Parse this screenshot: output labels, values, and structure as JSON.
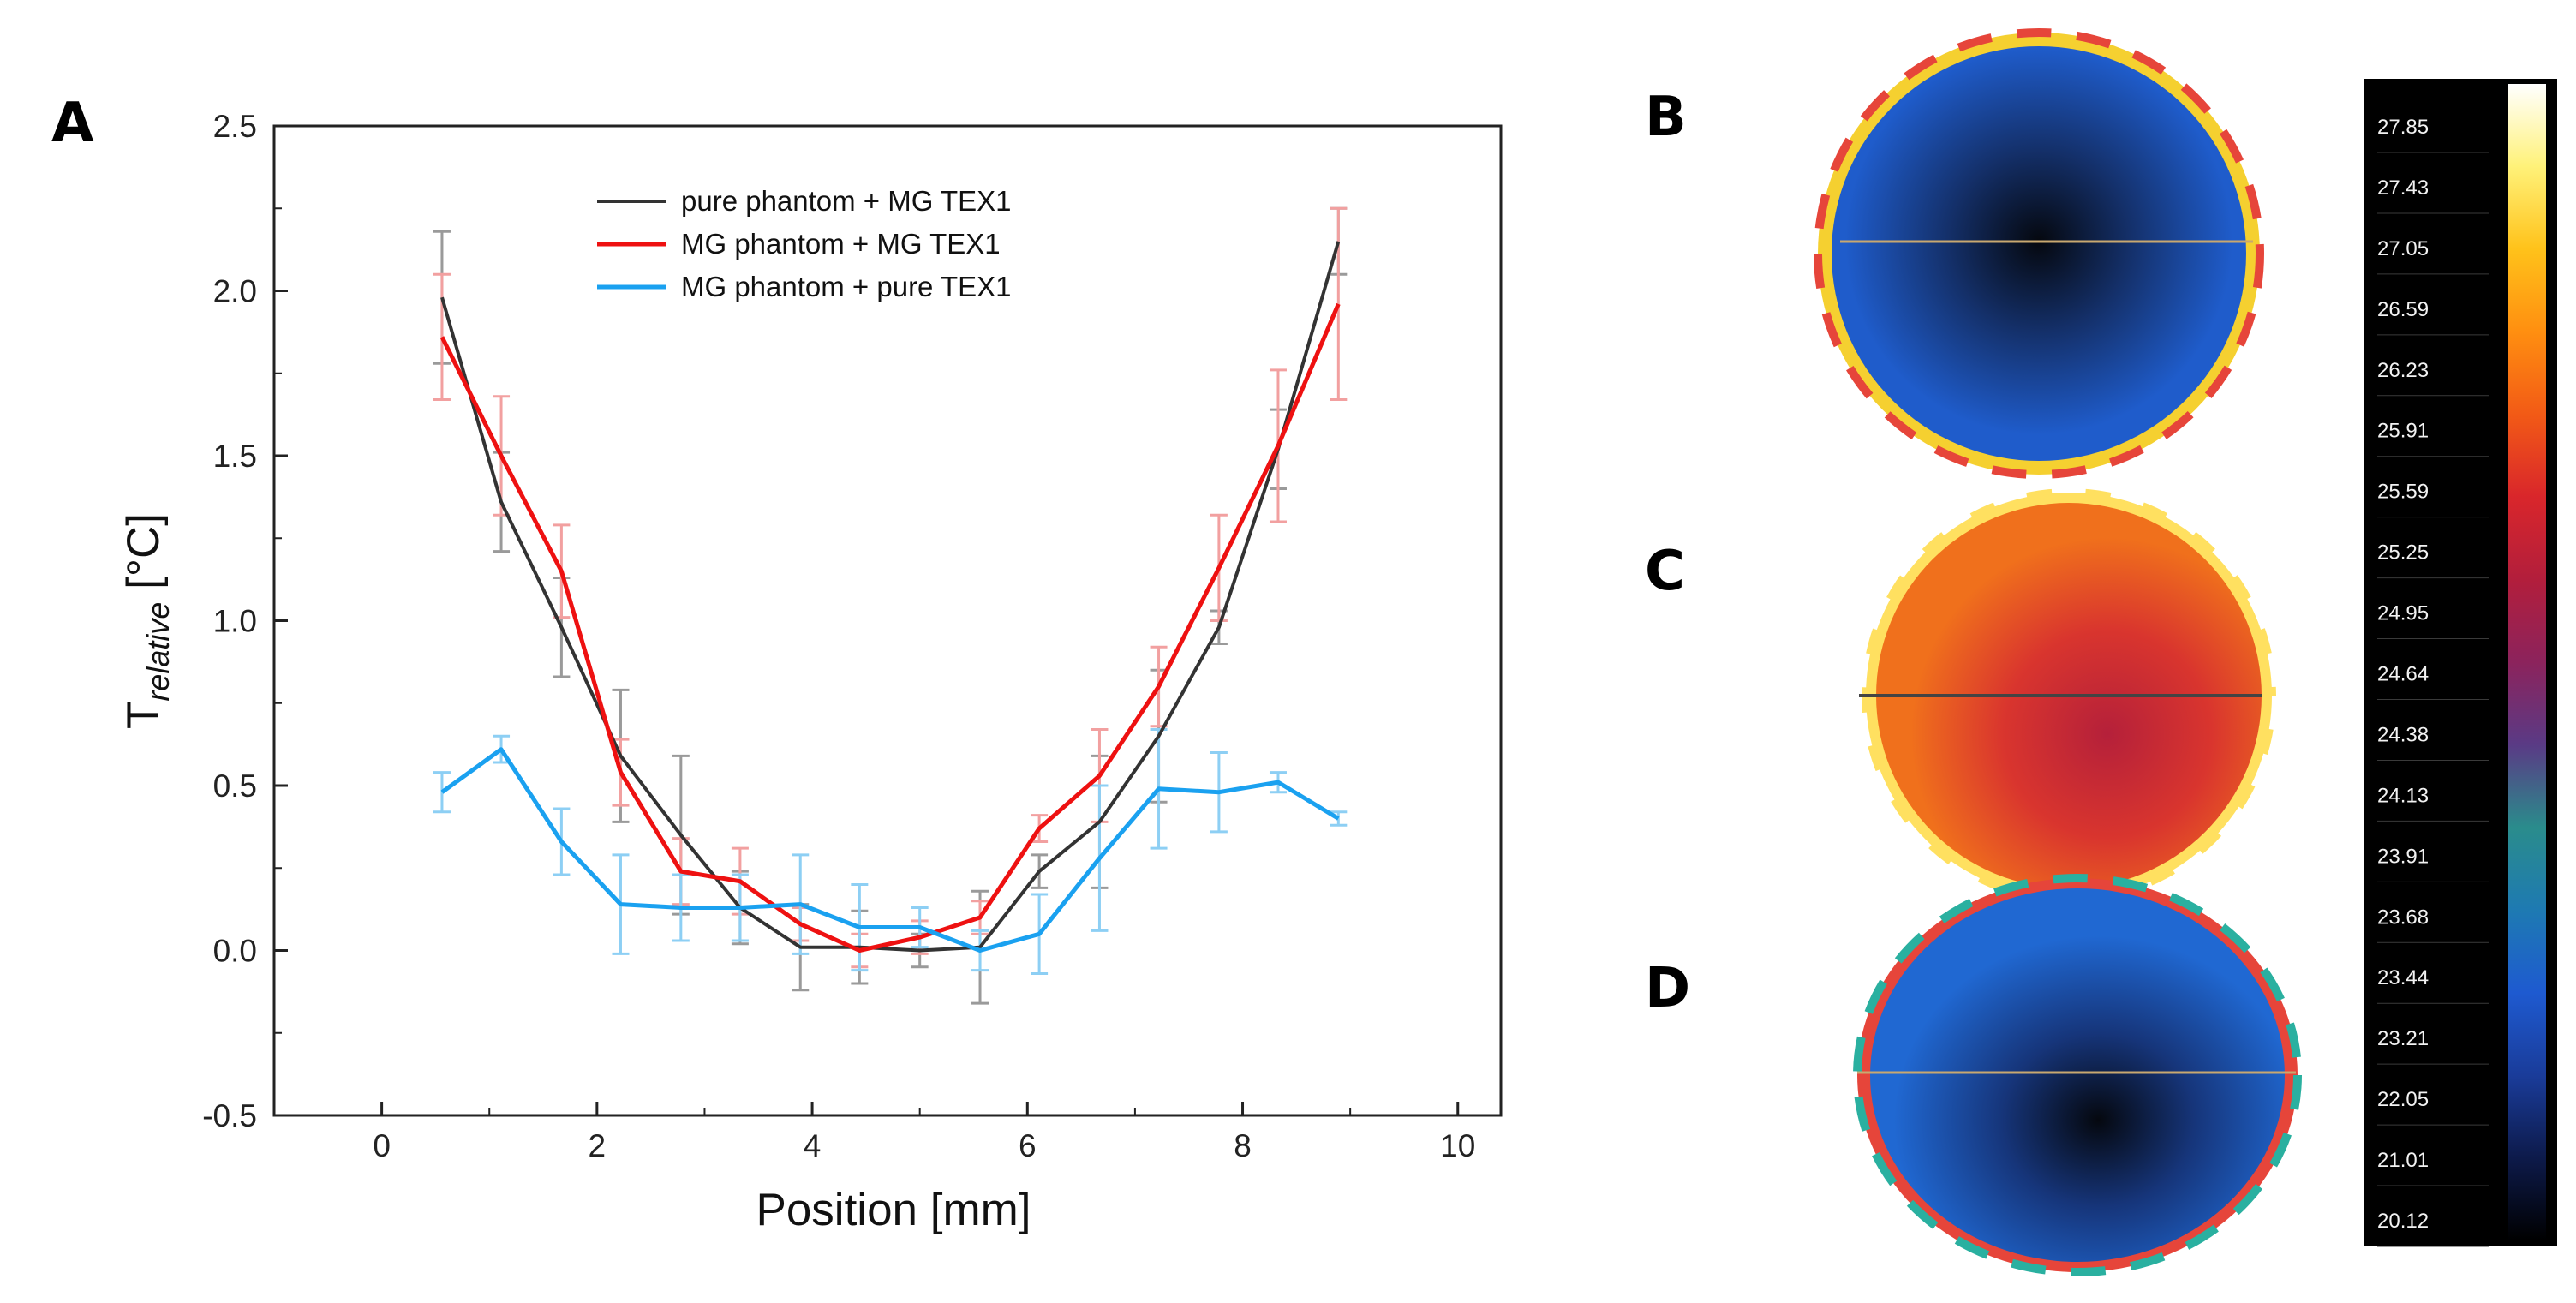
{
  "panels": {
    "a": "A",
    "b": "B",
    "c": "C",
    "d": "D"
  },
  "chart_data": {
    "type": "line",
    "title": "",
    "xlabel": "Position [mm]",
    "ylabel_main": "T",
    "ylabel_sub": "relative",
    "ylabel_unit": " [°C]",
    "xlim": [
      -1,
      10.4
    ],
    "ylim": [
      -0.5,
      2.5
    ],
    "xticks": [
      0,
      2,
      4,
      6,
      8,
      10
    ],
    "xtick_labels": [
      "0",
      "2",
      "4",
      "6",
      "8",
      "10"
    ],
    "yticks": [
      -0.5,
      0.0,
      0.5,
      1.0,
      1.5,
      2.0,
      2.5
    ],
    "ytick_labels": [
      "-0.5",
      "0.0",
      "0.5",
      "1.0",
      "1.5",
      "2.0",
      "2.5"
    ],
    "grid": false,
    "legend_position": "top-center",
    "series": [
      {
        "name": "pure phantom + MG TEX1",
        "color": "#333333",
        "errorbar_color": "#9a9a9a",
        "x": [
          0.56,
          1.11,
          1.67,
          2.22,
          2.78,
          3.33,
          3.89,
          4.44,
          5.0,
          5.56,
          6.11,
          6.67,
          7.22,
          7.78,
          8.33,
          8.89
        ],
        "y": [
          1.98,
          1.36,
          0.98,
          0.59,
          0.35,
          0.13,
          0.01,
          0.01,
          0.0,
          0.01,
          0.24,
          0.39,
          0.65,
          0.98,
          1.52,
          2.15
        ],
        "err": [
          0.2,
          0.15,
          0.15,
          0.2,
          0.24,
          0.11,
          0.13,
          0.11,
          0.05,
          0.17,
          0.05,
          0.2,
          0.2,
          0.05,
          0.12,
          0.1
        ]
      },
      {
        "name": "MG phantom + MG TEX1",
        "color": "#ee1111",
        "errorbar_color": "#f2a0a0",
        "x": [
          0.56,
          1.11,
          1.67,
          2.22,
          2.78,
          3.33,
          3.89,
          4.44,
          5.0,
          5.56,
          6.11,
          6.67,
          7.22,
          7.78,
          8.33,
          8.89
        ],
        "y": [
          1.86,
          1.5,
          1.15,
          0.54,
          0.24,
          0.21,
          0.08,
          0.0,
          0.04,
          0.1,
          0.37,
          0.53,
          0.8,
          1.16,
          1.53,
          1.96
        ],
        "err": [
          0.19,
          0.18,
          0.14,
          0.1,
          0.1,
          0.1,
          0.05,
          0.05,
          0.05,
          0.05,
          0.04,
          0.14,
          0.12,
          0.16,
          0.23,
          0.29
        ]
      },
      {
        "name": "MG phantom + pure TEX1",
        "color": "#1aa1f0",
        "errorbar_color": "#8dcff4",
        "x": [
          0.56,
          1.11,
          1.67,
          2.22,
          2.78,
          3.33,
          3.89,
          4.44,
          5.0,
          5.56,
          6.11,
          6.67,
          7.22,
          7.78,
          8.33,
          8.89
        ],
        "y": [
          0.48,
          0.61,
          0.33,
          0.14,
          0.13,
          0.13,
          0.14,
          0.07,
          0.07,
          0.0,
          0.05,
          0.28,
          0.49,
          0.48,
          0.51,
          0.4
        ],
        "err": [
          0.06,
          0.04,
          0.1,
          0.15,
          0.1,
          0.1,
          0.15,
          0.13,
          0.06,
          0.06,
          0.12,
          0.22,
          0.18,
          0.12,
          0.03,
          0.02
        ]
      }
    ]
  },
  "colorbar": {
    "labels": [
      "27.85",
      "27.43",
      "27.05",
      "26.59",
      "26.23",
      "25.91",
      "25.59",
      "25.25",
      "24.95",
      "24.64",
      "24.38",
      "24.13",
      "23.91",
      "23.68",
      "23.44",
      "23.21",
      "22.05",
      "21.01",
      "20.12"
    ],
    "gradient_colors": [
      "#ffffff",
      "#fff27a",
      "#ffc21a",
      "#ff8f10",
      "#f25a16",
      "#d9262b",
      "#b21e3c",
      "#8c235c",
      "#5a3a85",
      "#2a8c8c",
      "#1e7ab2",
      "#1e5ad0",
      "#1a3c9a",
      "#0d1a4a",
      "#000000"
    ]
  },
  "thermal_images": {
    "b": {
      "center_color": "#05080f",
      "mid_color": "#14306a",
      "edge_color": "#1f5ccb",
      "rim_colors": [
        "#f5d030",
        "#e6453a",
        "#ffffff"
      ],
      "line_color": "#c8a870"
    },
    "c": {
      "center_color": "#b5203a",
      "mid_color": "#d9352e",
      "edge_color": "#f0701c",
      "rim_colors": [
        "#ffe060",
        "#ffffff"
      ],
      "line_color": "#444444"
    },
    "d": {
      "center_color": "#05080f",
      "mid_color": "#16357a",
      "edge_color": "#2068d2",
      "rim_colors": [
        "#e6453a",
        "#2ab0a0",
        "#ffffff"
      ],
      "line_color": "#c8a870"
    }
  }
}
